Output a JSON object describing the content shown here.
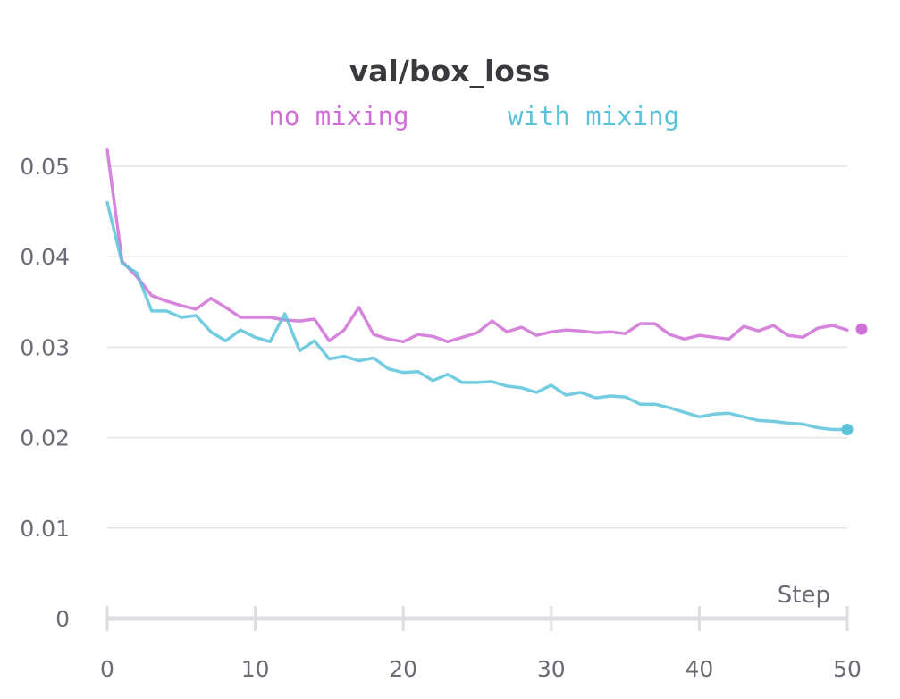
{
  "chart_data": {
    "type": "line",
    "title": "val/box_loss",
    "xlabel": "Step",
    "ylabel": "",
    "xlim": [
      0,
      50
    ],
    "ylim": [
      0,
      0.05
    ],
    "x_ticks": [
      0,
      10,
      20,
      30,
      40,
      50
    ],
    "y_ticks": [
      {
        "value": 0,
        "label": "0"
      },
      {
        "value": 0.01,
        "label": "0.01"
      },
      {
        "value": 0.02,
        "label": "0.02"
      },
      {
        "value": 0.03,
        "label": "0.03"
      },
      {
        "value": 0.04,
        "label": "0.04"
      },
      {
        "value": 0.05,
        "label": "0.05"
      }
    ],
    "grid": true,
    "legend": "top",
    "series": [
      {
        "name": "no mixing",
        "color": "#cf6fd6",
        "x": [
          0,
          1,
          2,
          3,
          4,
          5,
          6,
          7,
          8,
          9,
          10,
          11,
          12,
          13,
          14,
          15,
          16,
          17,
          18,
          19,
          20,
          21,
          22,
          23,
          24,
          25,
          26,
          27,
          28,
          29,
          30,
          31,
          32,
          33,
          34,
          35,
          36,
          37,
          38,
          39,
          40,
          41,
          42,
          43,
          44,
          45,
          46,
          47,
          48,
          49,
          50
        ],
        "values": [
          0.0518,
          0.0395,
          0.0378,
          0.0357,
          0.0351,
          0.0346,
          0.0342,
          0.0354,
          0.0344,
          0.0333,
          0.0333,
          0.0333,
          0.033,
          0.0329,
          0.0331,
          0.0307,
          0.0319,
          0.0344,
          0.0314,
          0.0309,
          0.0306,
          0.0314,
          0.0312,
          0.0306,
          0.0311,
          0.0316,
          0.0329,
          0.0317,
          0.0322,
          0.0313,
          0.0317,
          0.0319,
          0.0318,
          0.0316,
          0.0317,
          0.0315,
          0.0326,
          0.0326,
          0.0314,
          0.0309,
          0.0313,
          0.0311,
          0.0309,
          0.0323,
          0.0318,
          0.0324,
          0.0313,
          0.0311,
          0.0321,
          0.0324,
          0.0319
        ],
        "last_value": 0.032
      },
      {
        "name": "with mixing",
        "color": "#5bc3d9",
        "x": [
          0,
          1,
          2,
          3,
          4,
          5,
          6,
          7,
          8,
          9,
          10,
          11,
          12,
          13,
          14,
          15,
          16,
          17,
          18,
          19,
          20,
          21,
          22,
          23,
          24,
          25,
          26,
          27,
          28,
          29,
          30,
          31,
          32,
          33,
          34,
          35,
          36,
          37,
          38,
          39,
          40,
          41,
          42,
          43,
          44,
          45,
          46,
          47,
          48,
          49,
          50
        ],
        "values": [
          0.046,
          0.0393,
          0.0382,
          0.034,
          0.034,
          0.0333,
          0.0335,
          0.0317,
          0.0307,
          0.0319,
          0.0311,
          0.0306,
          0.0337,
          0.0296,
          0.0307,
          0.0287,
          0.029,
          0.0285,
          0.0288,
          0.0276,
          0.0272,
          0.0273,
          0.0263,
          0.027,
          0.0261,
          0.0261,
          0.0262,
          0.0257,
          0.0255,
          0.025,
          0.0258,
          0.0247,
          0.025,
          0.0244,
          0.0246,
          0.0245,
          0.0237,
          0.0237,
          0.0233,
          0.0228,
          0.0223,
          0.0226,
          0.0227,
          0.0223,
          0.0219,
          0.0218,
          0.0216,
          0.0215,
          0.0211,
          0.0209,
          0.0209
        ],
        "last_value": 0.0209
      }
    ]
  }
}
